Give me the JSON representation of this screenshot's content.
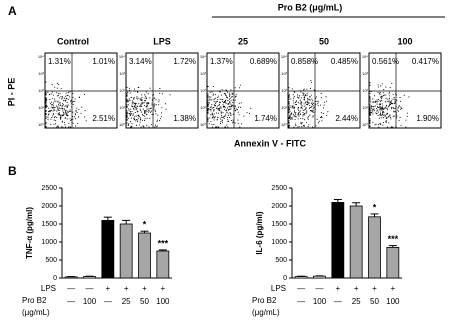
{
  "panel_a": {
    "label": "A",
    "group_title": "Pro B2 (μg/mL)",
    "y_axis_label": "PI - PE",
    "x_axis_label": "Annexin V - FITC",
    "tick_labels": [
      "10⁰",
      "10¹",
      "10²",
      "10³",
      "10⁴"
    ],
    "plots": [
      {
        "title": "Control",
        "upper_left": "1.31%",
        "upper_right": "1.01%",
        "lower_right": "2.51%"
      },
      {
        "title": "LPS",
        "upper_left": "3.14%",
        "upper_right": "1.72%",
        "lower_right": "1.38%"
      },
      {
        "title": "25",
        "upper_left": "1.37%",
        "upper_right": "0.689%",
        "lower_right": "1.74%"
      },
      {
        "title": "50",
        "upper_left": "0.858%",
        "upper_right": "0.485%",
        "lower_right": "2.44%"
      },
      {
        "title": "100",
        "upper_left": "0.561%",
        "upper_right": "0.417%",
        "lower_right": "1.90%"
      }
    ]
  },
  "panel_b_label": "B",
  "chart_data": [
    {
      "type": "bar",
      "y_label": "TNF-α (pg/ml)",
      "row_labels": [
        "LPS",
        "Pro B2",
        "(μg/mL)"
      ],
      "lps": [
        "—",
        "—",
        "+",
        "+",
        "+",
        "+"
      ],
      "categories": [
        "—",
        "100",
        "—",
        "25",
        "50",
        "100"
      ],
      "values": [
        30,
        40,
        1600,
        1500,
        1250,
        750
      ],
      "errors": [
        10,
        10,
        90,
        100,
        50,
        30
      ],
      "colors": [
        "#ffffff",
        "#ffffff",
        "#000000",
        "#a6a6a6",
        "#a6a6a6",
        "#a6a6a6"
      ],
      "annotations": [
        null,
        null,
        null,
        null,
        "*",
        "***"
      ],
      "ylim": [
        0,
        2500
      ],
      "yticks": [
        0,
        500,
        1000,
        1500,
        2000,
        2500
      ]
    },
    {
      "type": "bar",
      "y_label": "IL-6 (pg/ml)",
      "row_labels": [
        "LPS",
        "Pro B2",
        "(μg/mL)"
      ],
      "lps": [
        "—",
        "—",
        "+",
        "+",
        "+",
        "+"
      ],
      "categories": [
        "—",
        "100",
        "—",
        "25",
        "50",
        "100"
      ],
      "values": [
        40,
        50,
        2100,
        2000,
        1700,
        850
      ],
      "errors": [
        10,
        10,
        80,
        90,
        80,
        50
      ],
      "colors": [
        "#ffffff",
        "#ffffff",
        "#000000",
        "#a6a6a6",
        "#a6a6a6",
        "#a6a6a6"
      ],
      "annotations": [
        null,
        null,
        null,
        null,
        "*",
        "***"
      ],
      "ylim": [
        0,
        2500
      ],
      "yticks": [
        0,
        500,
        1000,
        1500,
        2000,
        2500
      ]
    }
  ]
}
